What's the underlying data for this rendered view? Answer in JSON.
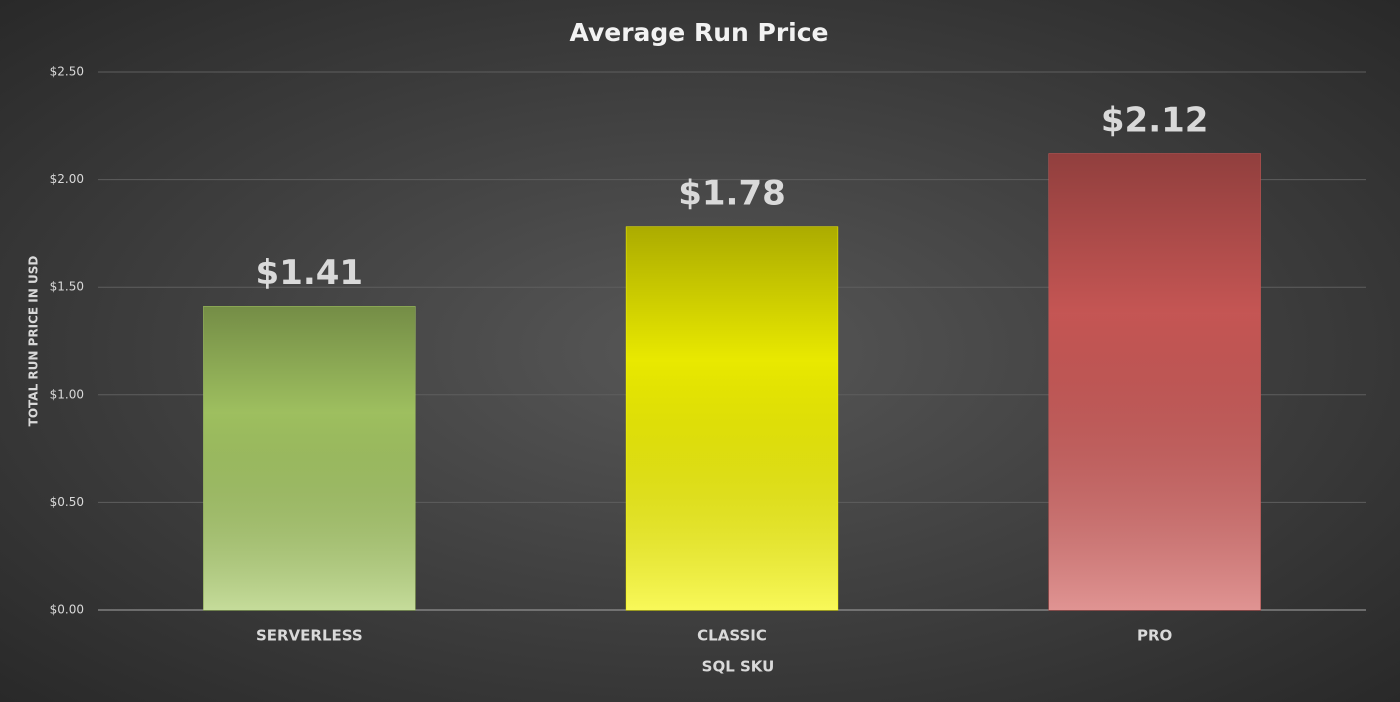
{
  "chart_data": {
    "type": "bar",
    "title": "Average Run Price",
    "x_label": "SQL SKU",
    "y_label": "TOTAL RUN PRICE IN USD",
    "categories": [
      "SERVERLESS",
      "CLASSIC",
      "PRO"
    ],
    "values": [
      1.41,
      1.78,
      2.12
    ],
    "value_labels": [
      "$1.41",
      "$1.78",
      "$2.12"
    ],
    "colors": [
      "#a6c964",
      "#f5f500",
      "#cf5a58"
    ],
    "ylim": [
      0,
      2.5
    ],
    "yticks": [
      {
        "value": 0,
        "label": "$0.00"
      },
      {
        "value": 0.5,
        "label": "$0.50"
      },
      {
        "value": 1,
        "label": "$1.00"
      },
      {
        "value": 1.5,
        "label": "$1.50"
      },
      {
        "value": 2,
        "label": "$2.00"
      },
      {
        "value": 2.5,
        "label": "$2.50"
      }
    ],
    "grid": true
  }
}
